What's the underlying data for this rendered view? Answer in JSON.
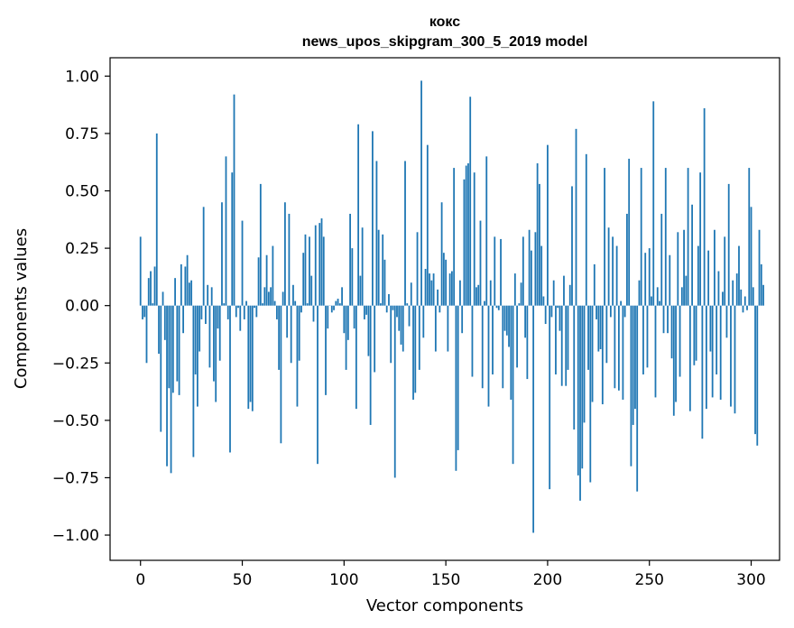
{
  "chart_data": {
    "type": "bar",
    "title": "кокс",
    "subtitle": "news_upos_skipgram_300_5_2019 model",
    "xlabel": "Vector components",
    "ylabel": "Components values",
    "xlim": [
      -14.95,
      313.95
    ],
    "ylim": [
      -1.11,
      1.08
    ],
    "xticks": [
      0,
      50,
      100,
      150,
      200,
      250,
      300
    ],
    "yticks": [
      1.0,
      0.75,
      0.5,
      0.25,
      0.0,
      -0.25,
      -0.5,
      -0.75,
      -1.0
    ],
    "ytick_labels": [
      "1.00",
      "0.75",
      "0.50",
      "0.25",
      "0.00",
      "−0.25",
      "−0.50",
      "−0.75",
      "−1.00"
    ],
    "bar_color": "#1f77b4",
    "grid": false,
    "values": [
      0.3,
      -0.06,
      -0.05,
      -0.25,
      0.12,
      0.15,
      0.01,
      0.17,
      0.75,
      -0.21,
      -0.55,
      0.06,
      -0.15,
      -0.7,
      -0.36,
      -0.73,
      -0.38,
      0.12,
      -0.33,
      -0.39,
      0.18,
      -0.12,
      0.17,
      0.22,
      0.1,
      0.11,
      -0.66,
      -0.3,
      -0.44,
      -0.2,
      -0.06,
      0.43,
      -0.08,
      0.09,
      -0.27,
      0.08,
      -0.33,
      -0.42,
      -0.1,
      -0.24,
      0.45,
      0.01,
      0.65,
      -0.06,
      -0.64,
      0.58,
      0.92,
      -0.05,
      -0.01,
      -0.11,
      0.37,
      -0.06,
      0.02,
      -0.45,
      -0.42,
      -0.46,
      -0.01,
      -0.05,
      0.21,
      0.53,
      0.01,
      0.08,
      0.22,
      0.06,
      0.08,
      0.26,
      0.02,
      -0.06,
      -0.28,
      -0.6,
      0.06,
      0.45,
      -0.14,
      0.4,
      -0.25,
      0.09,
      0.02,
      -0.44,
      -0.24,
      -0.03,
      0.23,
      0.31,
      0.01,
      0.3,
      0.13,
      -0.07,
      0.35,
      -0.69,
      0.36,
      0.38,
      0.3,
      -0.39,
      -0.1,
      0.0,
      -0.03,
      -0.02,
      0.02,
      0.03,
      0.01,
      0.08,
      -0.12,
      -0.28,
      -0.15,
      0.4,
      0.25,
      -0.1,
      -0.45,
      0.79,
      0.13,
      0.34,
      -0.06,
      -0.04,
      -0.22,
      -0.52,
      0.76,
      -0.29,
      0.63,
      0.33,
      0.01,
      0.31,
      0.2,
      -0.03,
      0.05,
      -0.25,
      -0.02,
      -0.75,
      -0.05,
      -0.11,
      -0.17,
      -0.2,
      0.63,
      0.01,
      -0.09,
      0.1,
      -0.41,
      -0.38,
      0.32,
      -0.28,
      0.98,
      -0.14,
      0.16,
      0.7,
      0.14,
      0.11,
      0.14,
      -0.2,
      0.07,
      -0.03,
      0.45,
      0.23,
      0.2,
      -0.2,
      0.14,
      0.15,
      0.6,
      -0.72,
      -0.63,
      0.11,
      -0.12,
      0.55,
      0.61,
      0.62,
      0.91,
      -0.31,
      0.58,
      0.08,
      0.09,
      0.37,
      -0.36,
      0.02,
      0.65,
      -0.44,
      0.11,
      -0.3,
      0.3,
      -0.01,
      -0.02,
      0.29,
      -0.36,
      -0.11,
      -0.13,
      -0.18,
      -0.41,
      -0.69,
      0.14,
      -0.27,
      0.01,
      0.1,
      0.3,
      -0.14,
      -0.32,
      0.33,
      0.24,
      -0.99,
      0.32,
      0.62,
      0.53,
      0.26,
      0.04,
      -0.08,
      0.7,
      -0.8,
      -0.05,
      0.11,
      -0.3,
      -0.01,
      -0.11,
      -0.35,
      0.13,
      -0.35,
      -0.28,
      0.09,
      0.52,
      -0.54,
      0.77,
      -0.74,
      -0.85,
      -0.71,
      -0.51,
      0.66,
      -0.28,
      -0.77,
      -0.42,
      0.18,
      -0.06,
      -0.2,
      -0.19,
      -0.43,
      0.6,
      -0.25,
      0.34,
      -0.05,
      0.3,
      -0.36,
      0.26,
      -0.37,
      0.02,
      -0.41,
      -0.05,
      0.4,
      0.64,
      -0.7,
      -0.52,
      -0.45,
      -0.81,
      0.11,
      0.6,
      -0.3,
      0.23,
      -0.27,
      0.25,
      0.04,
      0.89,
      -0.4,
      0.08,
      0.02,
      0.4,
      -0.12,
      0.6,
      -0.12,
      0.22,
      -0.23,
      -0.48,
      -0.42,
      0.32,
      -0.31,
      0.08,
      0.33,
      0.13,
      0.6,
      -0.46,
      0.44,
      -0.26,
      -0.24,
      0.26,
      0.58,
      -0.58,
      0.86,
      -0.45,
      0.24,
      -0.2,
      -0.4,
      0.33,
      -0.3,
      0.15,
      -0.41,
      0.06,
      0.3,
      -0.14,
      0.53,
      -0.44,
      0.11,
      -0.47,
      0.14,
      0.26,
      0.07,
      -0.03,
      0.04,
      -0.02,
      0.6,
      0.43,
      0.08,
      -0.56,
      -0.61,
      0.33,
      0.18,
      0.09
    ]
  }
}
